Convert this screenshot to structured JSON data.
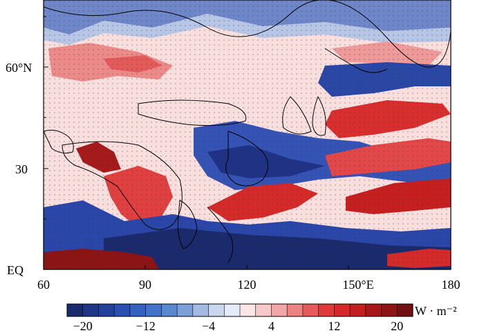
{
  "map": {
    "x_ticks": [
      "60",
      "90",
      "120",
      "150°E",
      "180"
    ],
    "y_ticks": [
      "60°N",
      "30",
      "EQ"
    ],
    "x_range_deg": [
      60,
      180
    ],
    "y_range_deg": [
      0,
      77
    ],
    "stippling": "dots mark statistically significant regions"
  },
  "colorbar": {
    "unit": "W · m⁻²",
    "tick_labels": [
      "−20",
      "−12",
      "−4",
      "4",
      "12",
      "20"
    ],
    "levels": 22,
    "colors": [
      "#1a2a6c",
      "#1f3585",
      "#24419a",
      "#2a4fae",
      "#3460bf",
      "#4273c8",
      "#5a88cf",
      "#7c9fd8",
      "#a3bbe2",
      "#c9d6ee",
      "#e6ecf7",
      "#fbe6e6",
      "#f7c8c8",
      "#f2a6a6",
      "#ec8282",
      "#e55a5a",
      "#df3a3a",
      "#d42a2a",
      "#c21f1f",
      "#a81818",
      "#8c1414",
      "#701010"
    ]
  }
}
